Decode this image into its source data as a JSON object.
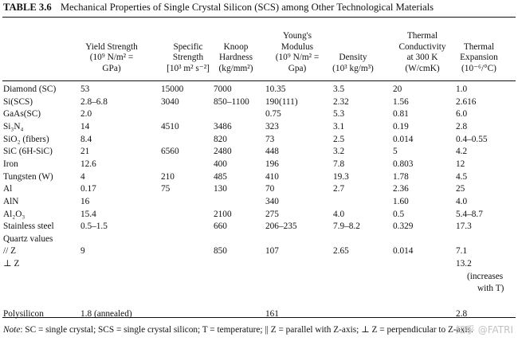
{
  "caption": {
    "number": "TABLE 3.6",
    "title": "Mechanical Properties of Single Crystal Silicon (SCS) among Other Technological Materials"
  },
  "headers": [
    {
      "lines": [
        "",
        "",
        ""
      ]
    },
    {
      "lines": [
        "Yield Strength",
        "(10⁹ N/m² =",
        "GPa)"
      ]
    },
    {
      "lines": [
        "Specific",
        "Strength",
        "[10³ m² s⁻²]"
      ]
    },
    {
      "lines": [
        "Knoop",
        "Hardness",
        "(kg/mm²)"
      ]
    },
    {
      "lines": [
        "Young's",
        "Modulus",
        "(10⁹ N/m² =",
        "Gpa)"
      ]
    },
    {
      "lines": [
        "",
        "Density",
        "(10³ kg/m³)"
      ]
    },
    {
      "lines": [
        "Thermal",
        "Conductivity",
        "at 300 K",
        "(W/cmK)"
      ]
    },
    {
      "lines": [
        "Thermal",
        "Expansion",
        "(10⁻⁶/°C)"
      ]
    }
  ],
  "rows": [
    [
      "Diamond (SC)",
      "53",
      "15000",
      "7000",
      "10.35",
      "3.5",
      "20",
      "1.0"
    ],
    [
      "Si(SCS)",
      "2.8–6.8",
      "3040",
      "850–1100",
      "190(111)",
      "2.32",
      "1.56",
      "2.616"
    ],
    [
      "GaAs(SC)",
      "2.0",
      "",
      "",
      "0.75",
      "5.3",
      "0.81",
      "6.0"
    ],
    [
      "Si₃N₄",
      "14",
      "4510",
      "3486",
      "323",
      "3.1",
      "0.19",
      "2.8"
    ],
    [
      "SiO₂ (fibers)",
      "8.4",
      "",
      "820",
      "73",
      "2.5",
      "0.014",
      "0.4–0.55"
    ],
    [
      "SiC (6H-SiC)",
      "21",
      "6560",
      "2480",
      "448",
      "3.2",
      "5",
      "4.2"
    ],
    [
      "Iron",
      "12.6",
      "",
      "400",
      "196",
      "7.8",
      "0.803",
      "12"
    ],
    [
      "Tungsten (W)",
      "4",
      "210",
      "485",
      "410",
      "19.3",
      "1.78",
      "4.5"
    ],
    [
      "Al",
      "0.17",
      "75",
      "130",
      "70",
      "2.7",
      "2.36",
      "25"
    ],
    [
      "AlN",
      "16",
      "",
      "",
      "340",
      "",
      "1.60",
      "4.0"
    ],
    [
      "Al₂O₃",
      "15.4",
      "",
      "2100",
      "275",
      "4.0",
      "0.5",
      "5.4–8.7"
    ],
    [
      "Stainless steel",
      "0.5–1.5",
      "",
      "660",
      "206–235",
      "7.9–8.2",
      "0.329",
      "17.3"
    ],
    [
      "Quartz values",
      "",
      "",
      "",
      "",
      "",
      "",
      ""
    ],
    [
      "// Z",
      "9",
      "",
      "850",
      "107",
      "2.65",
      "0.014",
      "7.1"
    ],
    [
      "⊥ Z",
      "",
      "",
      "",
      "",
      "",
      "",
      "13.2"
    ],
    [
      "",
      "",
      "",
      "",
      "",
      "",
      "",
      "(increases"
    ],
    [
      "",
      "",
      "",
      "",
      "",
      "",
      "",
      "with T)"
    ],
    [
      "",
      "",
      "",
      "",
      "",
      "",
      "",
      ""
    ],
    [
      "Polysilicon",
      "1.8 (annealed)",
      "",
      "",
      "161",
      "",
      "",
      "2.8"
    ]
  ],
  "note": {
    "label": "Note",
    "text": ": SC = single crystal; SCS = single crystal silicon; T = temperature; || Z = parallel with Z-axis; ⊥ Z = perpendicular to Z-axis."
  },
  "watermark": "知乎 @FATRI"
}
